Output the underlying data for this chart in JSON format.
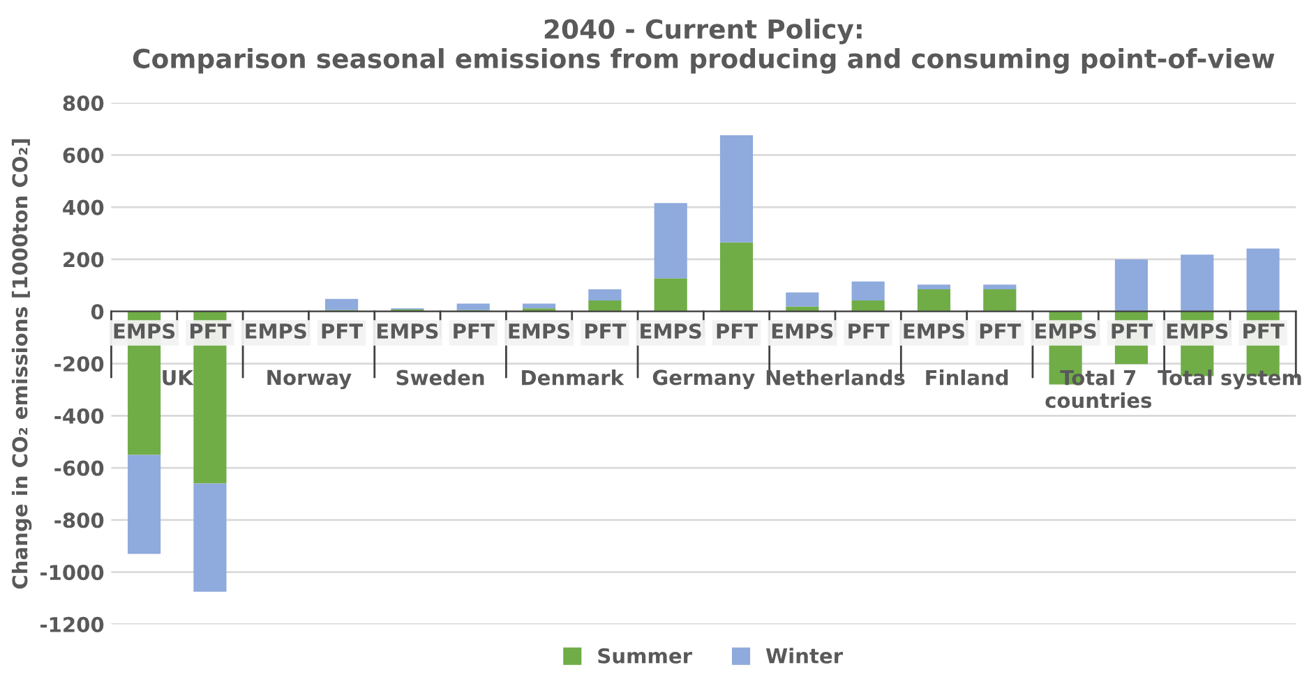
{
  "chart_data": {
    "type": "bar",
    "title": "2040 - Current Policy:\nComparison seasonal emissions from producing and consuming point-of-view",
    "ylabel": "Change in CO₂ emissions [1000ton CO₂]",
    "categories": [
      "EMPS",
      "PFT",
      "EMPS",
      "PFT",
      "EMPS",
      "PFT",
      "EMPS",
      "PFT",
      "EMPS",
      "PFT",
      "EMPS",
      "PFT",
      "EMPS",
      "PFT",
      "EMPS",
      "PFT",
      "EMPS",
      "PFT"
    ],
    "annotations": [
      "UK",
      "Norway",
      "Sweden",
      "Denmark",
      "Germany",
      "Netherlands",
      "Finland",
      "Total 7\ncountries",
      "Total system"
    ],
    "stacked": true,
    "series": [
      {
        "name": "Summer",
        "color": "#70ad47",
        "values": [
          -550,
          -660,
          0,
          5,
          7,
          5,
          12,
          42,
          127,
          265,
          19,
          42,
          85,
          85,
          -280,
          -202,
          -248,
          -248
        ]
      },
      {
        "name": "Winter",
        "color": "#8faadc",
        "values": [
          -380,
          -415,
          0,
          43,
          5,
          25,
          18,
          43,
          289,
          411,
          54,
          73,
          18,
          18,
          0,
          200,
          218,
          241
        ]
      }
    ],
    "ylim": [
      -1200,
      800
    ],
    "yticks": [
      -1200,
      -1000,
      -800,
      -600,
      -400,
      -200,
      0,
      200,
      400,
      600,
      800
    ],
    "grid": "y",
    "legend": "bottom"
  }
}
